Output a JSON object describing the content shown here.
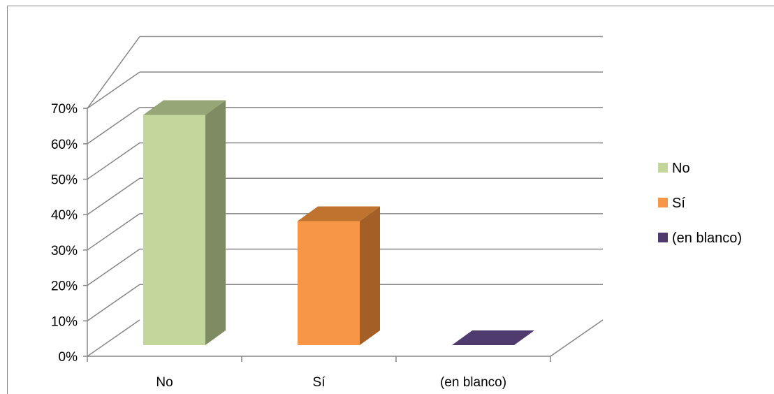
{
  "chart_data": {
    "type": "bar",
    "style": "3d-column",
    "title": "",
    "xlabel": "",
    "ylabel": "",
    "categories": [
      "No",
      "Sí",
      "(en blanco)"
    ],
    "series": [
      {
        "name": "No",
        "values": [
          65,
          null,
          null
        ],
        "color": "#C3D69B",
        "side_color": "#7F8C63",
        "top_color": "#97A676"
      },
      {
        "name": "Sí",
        "values": [
          null,
          35,
          null
        ],
        "color": "#F79646",
        "side_color": "#A35F26",
        "top_color": "#C0722F"
      },
      {
        "name": "(en blanco)",
        "values": [
          null,
          null,
          0
        ],
        "color": "#4F3B6E",
        "side_color": "#3A2B52",
        "top_color": "#4F3B6E"
      }
    ],
    "ylim": [
      0,
      70
    ],
    "yticks": [
      "0%",
      "10%",
      "20%",
      "30%",
      "40%",
      "50%",
      "60%",
      "70%"
    ],
    "ytick_values": [
      0,
      10,
      20,
      30,
      40,
      50,
      60,
      70
    ],
    "grid": true,
    "legend": {
      "position": "right",
      "entries": [
        "No",
        "Sí",
        "(en blanco)"
      ]
    },
    "colors": {
      "grid": "#868686",
      "axis": "#868686"
    }
  }
}
